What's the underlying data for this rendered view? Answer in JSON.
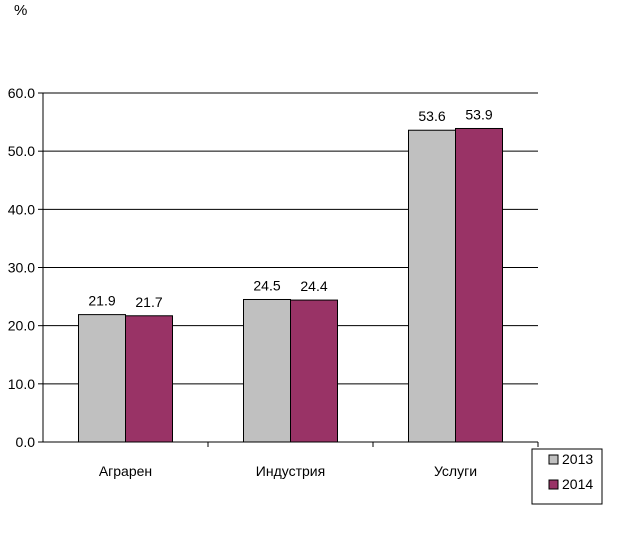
{
  "chart_data": {
    "type": "bar",
    "unit_label": "%",
    "categories": [
      "Аграрен",
      "Индустрия",
      "Услуги"
    ],
    "series": [
      {
        "name": "2013",
        "values": [
          21.9,
          24.5,
          53.6
        ],
        "color": "#c0c0c0"
      },
      {
        "name": "2014",
        "values": [
          21.7,
          24.4,
          53.9
        ],
        "color": "#993366"
      }
    ],
    "ylim": [
      0,
      60
    ],
    "yticks": [
      "0.0",
      "10.0",
      "20.0",
      "30.0",
      "40.0",
      "50.0",
      "60.0"
    ],
    "grid": true,
    "legend_position": "bottom-right"
  }
}
